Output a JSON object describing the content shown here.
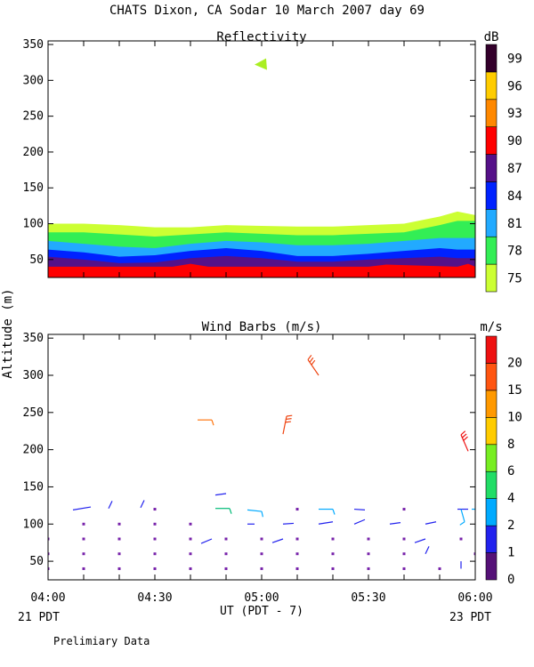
{
  "figure": {
    "title": "CHATS Dixon, CA   Sodar   10 March 2007   day  69",
    "ylabel": "Altitude (m)",
    "xlabel": "UT  (PDT - 7)",
    "left_note": "21 PDT",
    "right_note": "23 PDT",
    "footer": "Prelimiary Data"
  },
  "chart_data": [
    {
      "type": "area",
      "title": "Reflectivity",
      "ylim": [
        25,
        355
      ],
      "xlim": [
        0,
        120
      ],
      "yticks": [
        50,
        100,
        150,
        200,
        250,
        300,
        350
      ],
      "xtick_minutes": [
        0,
        10,
        20,
        30,
        40,
        50,
        60,
        70,
        80,
        90,
        100,
        110,
        120
      ],
      "xtick_labels": [
        {
          "m": 0,
          "label": "04:00"
        },
        {
          "m": 30,
          "label": "04:30"
        },
        {
          "m": 60,
          "label": "05:00"
        },
        {
          "m": 90,
          "label": "05:30"
        },
        {
          "m": 120,
          "label": "06:00"
        }
      ],
      "colorbar": {
        "unit": "dB",
        "labels": [
          "75",
          "78",
          "81",
          "84",
          "87",
          "90",
          "93",
          "96",
          "99"
        ],
        "colors": [
          "#ccff33",
          "#33ee55",
          "#22aaff",
          "#0022ff",
          "#551188",
          "#ff0000",
          "#ff8800",
          "#ffcc00",
          "#33002b"
        ]
      },
      "series": [
        {
          "name": "75",
          "color": "#ccff33",
          "x": [
            0,
            10,
            20,
            30,
            40,
            50,
            60,
            70,
            80,
            90,
            100,
            110,
            115,
            120
          ],
          "y": [
            100,
            100,
            98,
            95,
            95,
            98,
            97,
            96,
            96,
            98,
            100,
            110,
            117,
            112
          ]
        },
        {
          "name": "78",
          "color": "#33ee55",
          "x": [
            0,
            10,
            20,
            30,
            40,
            50,
            60,
            70,
            80,
            90,
            100,
            110,
            115,
            120
          ],
          "y": [
            88,
            88,
            85,
            82,
            85,
            88,
            86,
            84,
            84,
            86,
            88,
            98,
            104,
            104
          ]
        },
        {
          "name": "81",
          "color": "#22aaff",
          "x": [
            0,
            10,
            20,
            30,
            40,
            50,
            60,
            70,
            80,
            90,
            100,
            110,
            115,
            120
          ],
          "y": [
            76,
            72,
            68,
            66,
            72,
            76,
            74,
            70,
            70,
            72,
            76,
            80,
            80,
            80
          ]
        },
        {
          "name": "84",
          "color": "#0022ff",
          "x": [
            0,
            10,
            20,
            30,
            40,
            50,
            60,
            70,
            80,
            90,
            100,
            110,
            115,
            120
          ],
          "y": [
            64,
            60,
            54,
            56,
            62,
            66,
            62,
            55,
            55,
            58,
            62,
            66,
            64,
            64
          ]
        },
        {
          "name": "87",
          "color": "#551188",
          "x": [
            0,
            10,
            20,
            30,
            40,
            50,
            60,
            70,
            80,
            90,
            100,
            110,
            115,
            120
          ],
          "y": [
            54,
            50,
            45,
            46,
            52,
            55,
            52,
            47,
            47,
            50,
            52,
            54,
            52,
            52
          ]
        },
        {
          "name": "90",
          "color": "#ff0000",
          "x": [
            0,
            35,
            40,
            45,
            90,
            95,
            115,
            118,
            120
          ],
          "y": [
            40,
            40,
            44,
            40,
            40,
            43,
            40,
            44,
            40
          ]
        }
      ],
      "annotation": {
        "label": "green cell",
        "color": "#aaee22",
        "x": 60,
        "y": 322
      }
    },
    {
      "type": "scatter",
      "title": "Wind Barbs (m/s)",
      "ylim": [
        25,
        355
      ],
      "xlim": [
        0,
        120
      ],
      "yticks": [
        50,
        100,
        150,
        200,
        250,
        300,
        350
      ],
      "xtick_minutes": [
        0,
        10,
        20,
        30,
        40,
        50,
        60,
        70,
        80,
        90,
        100,
        110,
        120
      ],
      "xtick_labels": [
        {
          "m": 0,
          "label": "04:00"
        },
        {
          "m": 30,
          "label": "04:30"
        },
        {
          "m": 60,
          "label": "05:00"
        },
        {
          "m": 90,
          "label": "05:30"
        },
        {
          "m": 120,
          "label": "06:00"
        }
      ],
      "colorbar": {
        "unit": "m/s",
        "labels": [
          "0",
          "1",
          "2",
          "4",
          "6",
          "8",
          "10",
          "15",
          "20"
        ],
        "colors": [
          "#551177",
          "#2222ee",
          "#00aaff",
          "#22dd66",
          "#77ee22",
          "#ffcc00",
          "#ff9900",
          "#ff5511",
          "#ee1111"
        ]
      },
      "dots": [
        {
          "x": 0,
          "y": 40
        },
        {
          "x": 0,
          "y": 60
        },
        {
          "x": 0,
          "y": 80
        },
        {
          "x": 10,
          "y": 40
        },
        {
          "x": 10,
          "y": 60
        },
        {
          "x": 10,
          "y": 80
        },
        {
          "x": 10,
          "y": 100
        },
        {
          "x": 20,
          "y": 40
        },
        {
          "x": 20,
          "y": 60
        },
        {
          "x": 20,
          "y": 80
        },
        {
          "x": 20,
          "y": 100
        },
        {
          "x": 30,
          "y": 40
        },
        {
          "x": 30,
          "y": 60
        },
        {
          "x": 30,
          "y": 80
        },
        {
          "x": 30,
          "y": 100
        },
        {
          "x": 30,
          "y": 120
        },
        {
          "x": 40,
          "y": 40
        },
        {
          "x": 40,
          "y": 60
        },
        {
          "x": 40,
          "y": 80
        },
        {
          "x": 40,
          "y": 100
        },
        {
          "x": 50,
          "y": 40
        },
        {
          "x": 50,
          "y": 60
        },
        {
          "x": 50,
          "y": 80
        },
        {
          "x": 60,
          "y": 40
        },
        {
          "x": 60,
          "y": 60
        },
        {
          "x": 60,
          "y": 80
        },
        {
          "x": 70,
          "y": 40
        },
        {
          "x": 70,
          "y": 60
        },
        {
          "x": 70,
          "y": 80
        },
        {
          "x": 70,
          "y": 120
        },
        {
          "x": 80,
          "y": 40
        },
        {
          "x": 80,
          "y": 60
        },
        {
          "x": 80,
          "y": 80
        },
        {
          "x": 90,
          "y": 40
        },
        {
          "x": 90,
          "y": 60
        },
        {
          "x": 90,
          "y": 80
        },
        {
          "x": 100,
          "y": 40
        },
        {
          "x": 100,
          "y": 60
        },
        {
          "x": 100,
          "y": 80
        },
        {
          "x": 100,
          "y": 120
        },
        {
          "x": 110,
          "y": 40
        },
        {
          "x": 116,
          "y": 80
        },
        {
          "x": 120,
          "y": 60
        }
      ],
      "barbs": [
        {
          "x": 7,
          "y": 119,
          "x2": 12,
          "y2": 123,
          "color": "#2222ee",
          "ticks": 0
        },
        {
          "x": 17,
          "y": 121,
          "x2": 18,
          "y2": 131,
          "color": "#2222ee",
          "ticks": 0
        },
        {
          "x": 26,
          "y": 122,
          "x2": 27,
          "y2": 132,
          "color": "#2222ee",
          "ticks": 0
        },
        {
          "x": 47,
          "y": 139,
          "x2": 50,
          "y2": 141,
          "color": "#2222ee",
          "ticks": 0
        },
        {
          "x": 47,
          "y": 121,
          "x2": 51,
          "y2": 121,
          "color": "#00bb77",
          "ticks": 1
        },
        {
          "x": 56,
          "y": 119,
          "x2": 60,
          "y2": 117,
          "color": "#00aaff",
          "ticks": 1
        },
        {
          "x": 76,
          "y": 120,
          "x2": 80,
          "y2": 120,
          "color": "#00aaff",
          "ticks": 1
        },
        {
          "x": 86,
          "y": 120,
          "x2": 89,
          "y2": 119,
          "color": "#2222ee",
          "ticks": 0
        },
        {
          "x": 96,
          "y": 100,
          "x2": 99,
          "y2": 102,
          "color": "#2222ee",
          "ticks": 0
        },
        {
          "x": 86,
          "y": 100,
          "x2": 89,
          "y2": 106,
          "color": "#2222ee",
          "ticks": 0
        },
        {
          "x": 76,
          "y": 100,
          "x2": 80,
          "y2": 103,
          "color": "#2222ee",
          "ticks": 0
        },
        {
          "x": 66,
          "y": 100,
          "x2": 69,
          "y2": 101,
          "color": "#2222ee",
          "ticks": 0
        },
        {
          "x": 56,
          "y": 100,
          "x2": 58,
          "y2": 100,
          "color": "#2222ee",
          "ticks": 0
        },
        {
          "x": 106,
          "y": 100,
          "x2": 109,
          "y2": 103,
          "color": "#2222ee",
          "ticks": 0
        },
        {
          "x": 115,
          "y": 120,
          "x2": 118,
          "y2": 120,
          "color": "#2222ee",
          "ticks": 0
        },
        {
          "x": 116,
          "y": 120,
          "x2": 117,
          "y2": 103,
          "color": "#00aaff",
          "ticks": 1
        },
        {
          "x": 119,
          "y": 120,
          "x2": 123,
          "y2": 120,
          "color": "#00aaff",
          "ticks": 0
        },
        {
          "x": 43,
          "y": 74,
          "x2": 46,
          "y2": 80,
          "color": "#2222ee",
          "ticks": 0
        },
        {
          "x": 63,
          "y": 75,
          "x2": 66,
          "y2": 80,
          "color": "#2222ee",
          "ticks": 0
        },
        {
          "x": 103,
          "y": 75,
          "x2": 106,
          "y2": 80,
          "color": "#2222ee",
          "ticks": 0
        },
        {
          "x": 106,
          "y": 60,
          "x2": 107,
          "y2": 70,
          "color": "#2222ee",
          "ticks": 0
        },
        {
          "x": 116,
          "y": 40,
          "x2": 116,
          "y2": 50,
          "color": "#2222ee",
          "ticks": 0
        },
        {
          "x": 42,
          "y": 240,
          "x2": 46,
          "y2": 240,
          "color": "#ff7711",
          "ticks": 1
        },
        {
          "x": 66,
          "y": 221,
          "x2": 67,
          "y2": 245,
          "color": "#ee4411",
          "ticks": 3
        },
        {
          "x": 76,
          "y": 300,
          "x2": 73,
          "y2": 321,
          "color": "#ee4411",
          "ticks": 3
        },
        {
          "x": 118,
          "y": 198,
          "x2": 116,
          "y2": 220,
          "color": "#ee1111",
          "ticks": 3
        }
      ]
    }
  ]
}
